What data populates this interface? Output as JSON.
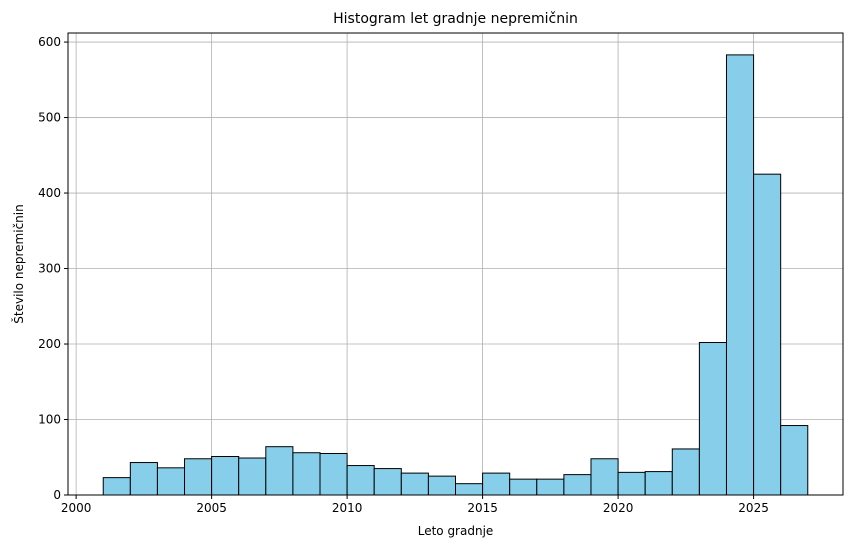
{
  "chart_data": {
    "type": "bar",
    "title": "Histogram let gradnje nepremičnin",
    "xlabel": "Leto gradnje",
    "ylabel": "Število nepremičnin",
    "xlim": [
      1999.7,
      2028.3
    ],
    "ylim": [
      0,
      612
    ],
    "xticks": [
      2000,
      2005,
      2010,
      2015,
      2020,
      2025
    ],
    "yticks": [
      0,
      100,
      200,
      300,
      400,
      500,
      600
    ],
    "grid": true,
    "bar_color": "#87ceeb",
    "edge_color": "#000000",
    "bins": [
      {
        "start": 2001,
        "end": 2002,
        "count": 23
      },
      {
        "start": 2002,
        "end": 2003,
        "count": 43
      },
      {
        "start": 2003,
        "end": 2004,
        "count": 36
      },
      {
        "start": 2004,
        "end": 2005,
        "count": 48
      },
      {
        "start": 2005,
        "end": 2006,
        "count": 51
      },
      {
        "start": 2006,
        "end": 2007,
        "count": 49
      },
      {
        "start": 2007,
        "end": 2008,
        "count": 64
      },
      {
        "start": 2008,
        "end": 2009,
        "count": 56
      },
      {
        "start": 2009,
        "end": 2010,
        "count": 55
      },
      {
        "start": 2010,
        "end": 2011,
        "count": 39
      },
      {
        "start": 2011,
        "end": 2012,
        "count": 35
      },
      {
        "start": 2012,
        "end": 2013,
        "count": 29
      },
      {
        "start": 2013,
        "end": 2014,
        "count": 25
      },
      {
        "start": 2014,
        "end": 2015,
        "count": 15
      },
      {
        "start": 2015,
        "end": 2016,
        "count": 29
      },
      {
        "start": 2016,
        "end": 2017,
        "count": 21
      },
      {
        "start": 2017,
        "end": 2018,
        "count": 21
      },
      {
        "start": 2018,
        "end": 2019,
        "count": 27
      },
      {
        "start": 2019,
        "end": 2020,
        "count": 48
      },
      {
        "start": 2020,
        "end": 2021,
        "count": 30
      },
      {
        "start": 2021,
        "end": 2022,
        "count": 31
      },
      {
        "start": 2022,
        "end": 2023,
        "count": 61
      },
      {
        "start": 2023,
        "end": 2024,
        "count": 202
      },
      {
        "start": 2024,
        "end": 2025,
        "count": 583
      },
      {
        "start": 2025,
        "end": 2026,
        "count": 425
      },
      {
        "start": 2026,
        "end": 2027,
        "count": 92
      }
    ]
  }
}
